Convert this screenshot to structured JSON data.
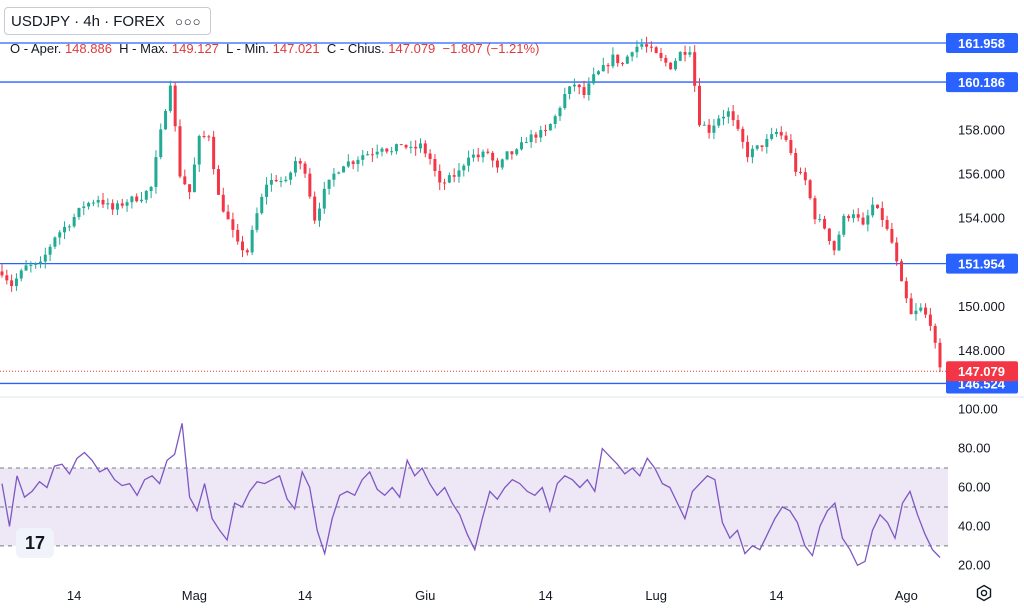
{
  "header": {
    "symbol_label": "USDJPY · 4h · FOREX",
    "more_icon": "more-dots-icon",
    "ohlc": {
      "open_label": "O - Aper.",
      "open": "148.886",
      "high_label": "H - Max.",
      "high": "149.127",
      "low_label": "L - Min.",
      "low": "147.021",
      "close_label": "C - Chius.",
      "close": "147.079",
      "change": "−1.807",
      "change_pct": "(−1.21%)"
    }
  },
  "colors": {
    "up": "#22ab94",
    "down": "#f23645",
    "hline": "#2962ff",
    "rsi": "#7e57c2",
    "rsi_band": "#ede7f6",
    "last_price": "#f23645"
  },
  "chart_data": [
    {
      "type": "candlestick",
      "title": "",
      "ylim": [
        146.0,
        163.0
      ],
      "y_ticks": [
        148.0,
        150.0,
        152.0,
        154.0,
        156.0,
        158.0
      ],
      "y_tick_labels": [
        "148.000",
        "150.000",
        "152.000",
        "154.000",
        "156.000",
        "158.000"
      ],
      "x_tick_labels": [
        "14",
        "Mag",
        "14",
        "Giu",
        "14",
        "Lug",
        "14",
        "Ago"
      ],
      "horizontal_lines": [
        {
          "value": 161.958,
          "label": "161.958"
        },
        {
          "value": 160.186,
          "label": "160.186"
        },
        {
          "value": 151.954,
          "label": "151.954"
        },
        {
          "value": 146.524,
          "label": "146.524"
        }
      ],
      "last_price": {
        "value": 147.079,
        "label": "147.079"
      },
      "close_path": [
        [
          0,
          151.6
        ],
        [
          2,
          151.0
        ],
        [
          5,
          151.8
        ],
        [
          8,
          151.9
        ],
        [
          11,
          153.2
        ],
        [
          14,
          153.8
        ],
        [
          17,
          154.6
        ],
        [
          20,
          154.9
        ],
        [
          23,
          154.4
        ],
        [
          26,
          154.8
        ],
        [
          29,
          155.0
        ],
        [
          31,
          155.4
        ],
        [
          33,
          157.9
        ],
        [
          35,
          160.2
        ],
        [
          37,
          156.0
        ],
        [
          39,
          155.2
        ],
        [
          41,
          157.6
        ],
        [
          43,
          157.8
        ],
        [
          45,
          155.0
        ],
        [
          47,
          153.9
        ],
        [
          49,
          152.8
        ],
        [
          51,
          152.5
        ],
        [
          53,
          154.2
        ],
        [
          55,
          155.6
        ],
        [
          57,
          155.8
        ],
        [
          59,
          155.6
        ],
        [
          61,
          156.6
        ],
        [
          63,
          156.2
        ],
        [
          65,
          154.0
        ],
        [
          67,
          155.2
        ],
        [
          69,
          156.0
        ],
        [
          71,
          156.5
        ],
        [
          73,
          156.6
        ],
        [
          75,
          156.9
        ],
        [
          77,
          157.0
        ],
        [
          79,
          157.3
        ],
        [
          81,
          157.0
        ],
        [
          83,
          157.4
        ],
        [
          85,
          157.1
        ],
        [
          87,
          157.3
        ],
        [
          89,
          156.7
        ],
        [
          91,
          155.5
        ],
        [
          93,
          155.8
        ],
        [
          95,
          156.1
        ],
        [
          97,
          156.9
        ],
        [
          99,
          156.8
        ],
        [
          101,
          157.0
        ],
        [
          103,
          156.2
        ],
        [
          105,
          156.9
        ],
        [
          107,
          157.0
        ],
        [
          109,
          157.6
        ],
        [
          111,
          157.8
        ],
        [
          113,
          157.9
        ],
        [
          115,
          158.6
        ],
        [
          117,
          159.6
        ],
        [
          119,
          160.1
        ],
        [
          121,
          159.6
        ],
        [
          123,
          160.4
        ],
        [
          125,
          160.8
        ],
        [
          127,
          161.3
        ],
        [
          129,
          161.0
        ],
        [
          131,
          161.7
        ],
        [
          133,
          161.9
        ],
        [
          135,
          161.6
        ],
        [
          137,
          161.2
        ],
        [
          139,
          160.9
        ],
        [
          141,
          161.5
        ],
        [
          143,
          161.7
        ],
        [
          145,
          158.4
        ],
        [
          147,
          158.0
        ],
        [
          149,
          158.6
        ],
        [
          151,
          158.8
        ],
        [
          153,
          157.9
        ],
        [
          155,
          156.9
        ],
        [
          157,
          157.2
        ],
        [
          159,
          157.5
        ],
        [
          161,
          157.9
        ],
        [
          163,
          157.6
        ],
        [
          165,
          156.2
        ],
        [
          167,
          155.7
        ],
        [
          169,
          154.1
        ],
        [
          171,
          153.6
        ],
        [
          173,
          152.6
        ],
        [
          175,
          154.0
        ],
        [
          177,
          154.3
        ],
        [
          179,
          153.6
        ],
        [
          181,
          154.6
        ],
        [
          183,
          154.0
        ],
        [
          185,
          152.9
        ],
        [
          187,
          151.0
        ],
        [
          189,
          149.6
        ],
        [
          191,
          149.9
        ],
        [
          193,
          149.3
        ],
        [
          195,
          147.1
        ]
      ]
    },
    {
      "type": "line",
      "title": "",
      "ylim": [
        15,
        105
      ],
      "y_ticks": [
        20,
        40,
        60,
        80,
        100
      ],
      "y_tick_labels": [
        "20.00",
        "40.00",
        "60.00",
        "80.00",
        "100.00"
      ],
      "band": [
        30,
        70
      ],
      "midline": 50,
      "series": [
        {
          "values": [
            62,
            40,
            66,
            55,
            58,
            63,
            60,
            71,
            72,
            67,
            75,
            78,
            74,
            68,
            70,
            64,
            61,
            62,
            56,
            64,
            66,
            62,
            74,
            77,
            93,
            55,
            48,
            62,
            44,
            38,
            33,
            52,
            50,
            58,
            63,
            62,
            64,
            66,
            54,
            49,
            68,
            60,
            38,
            26,
            44,
            56,
            58,
            56,
            64,
            68,
            59,
            56,
            60,
            55,
            74,
            66,
            70,
            62,
            56,
            60,
            52,
            46,
            36,
            28,
            44,
            58,
            54,
            60,
            64,
            62,
            58,
            56,
            60,
            48,
            62,
            66,
            64,
            60,
            64,
            58,
            80,
            76,
            72,
            67,
            70,
            66,
            75,
            70,
            62,
            60,
            52,
            44,
            58,
            62,
            66,
            64,
            42,
            34,
            38,
            26,
            30,
            28,
            36,
            44,
            50,
            48,
            42,
            30,
            25,
            40,
            48,
            52,
            34,
            28,
            20,
            22,
            38,
            46,
            42,
            34,
            52,
            58,
            46,
            36,
            28,
            24
          ]
        }
      ]
    }
  ]
}
